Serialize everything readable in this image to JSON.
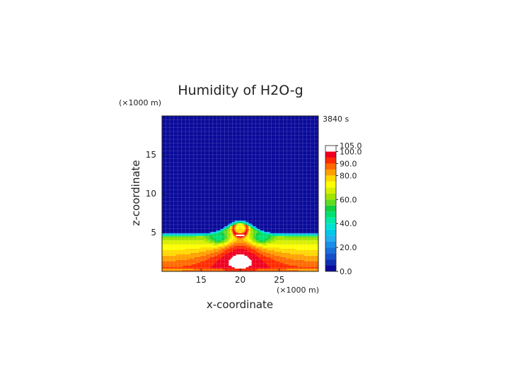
{
  "chart_data": {
    "type": "heatmap",
    "title": "Humidity of H2O-g",
    "xlabel": "x-coordinate",
    "ylabel": "z-coordinate",
    "x_unit": "(×1000 m)",
    "y_unit": "(×1000 m)",
    "time_label": "3840 s",
    "xlim": [
      10,
      30
    ],
    "ylim": [
      0,
      20
    ],
    "x_ticks": [
      15,
      20,
      25
    ],
    "y_ticks": [
      5,
      10,
      15
    ],
    "grid": true,
    "legend": "right",
    "colorbar": {
      "levels": [
        0,
        5,
        10,
        15,
        20,
        25,
        30,
        35,
        40,
        45,
        50,
        55,
        60,
        65,
        70,
        75,
        80,
        85,
        90,
        95,
        100,
        105
      ],
      "colors": [
        "#0a0a9a",
        "#1030b4",
        "#1650c8",
        "#1870d8",
        "#1c8ee6",
        "#22aef0",
        "#00c8e6",
        "#00e0d2",
        "#00e8a8",
        "#00e070",
        "#10d040",
        "#60dc20",
        "#a0e400",
        "#d8f000",
        "#ffff00",
        "#ffd800",
        "#ffa000",
        "#ff6a00",
        "#ff2a00",
        "#f00020",
        "#ffffff"
      ],
      "tick_labels": [
        "0.0",
        "20.0",
        "40.0",
        "60.0",
        "80.0",
        "90.0",
        "100.0",
        "105.0"
      ],
      "tick_values": [
        0,
        20,
        40,
        60,
        80,
        90,
        100,
        105
      ]
    }
  }
}
